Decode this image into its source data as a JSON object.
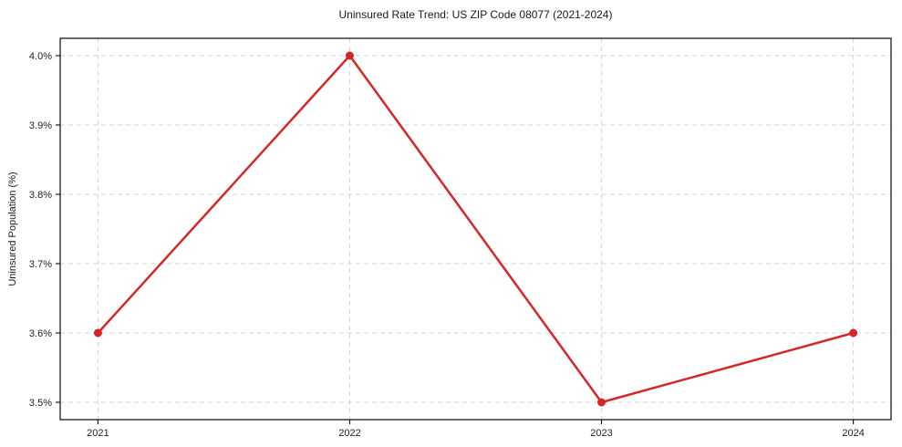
{
  "chart_data": {
    "type": "line",
    "title": "Uninsured Rate Trend: US ZIP Code 08077 (2021-2024)",
    "xlabel": "",
    "ylabel": "Uninsured Population (%)",
    "x": [
      2021,
      2022,
      2023,
      2024
    ],
    "x_tick_labels": [
      "2021",
      "2022",
      "2023",
      "2024"
    ],
    "series": [
      {
        "name": "Uninsured Population (%)",
        "values": [
          3.6,
          4.0,
          3.5,
          3.6
        ]
      }
    ],
    "y_ticks": [
      3.5,
      3.6,
      3.7,
      3.8,
      3.9,
      4.0
    ],
    "y_tick_labels": [
      "3.5%",
      "3.6%",
      "3.7%",
      "3.8%",
      "3.9%",
      "4.0%"
    ],
    "xlim": [
      2020.85,
      2024.15
    ],
    "ylim": [
      3.475,
      4.025
    ],
    "grid": true,
    "grid_style": "dashed",
    "legend": "none",
    "colors": {
      "line": "#d62728",
      "marker": "#d62728",
      "grid": "#d5d5d5",
      "spine": "#1a1a1a",
      "tick_text": "#222222",
      "background": "#ffffff"
    }
  }
}
